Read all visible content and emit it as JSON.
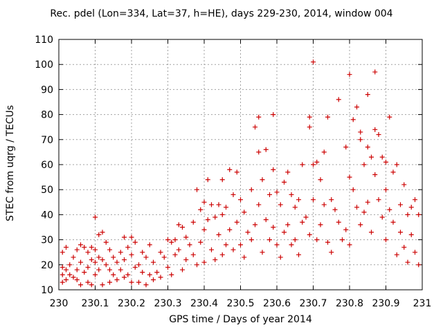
{
  "chart_data": {
    "type": "scatter",
    "title": "Rec. pdel (Lon=334, Lat=37, h=HE), days 229-230, 2014, window 004",
    "xlabel": "GPS time / Days of year 2014",
    "ylabel": "STEC from uqrg / TECUs",
    "xlim": [
      230,
      231
    ],
    "ylim": [
      10,
      110
    ],
    "xticks": [
      "230",
      "230.1",
      "230.2",
      "230.3",
      "230.4",
      "230.5",
      "230.6",
      "230.7",
      "230.8",
      "230.9",
      "231"
    ],
    "yticks": [
      "10",
      "20",
      "30",
      "40",
      "50",
      "60",
      "70",
      "80",
      "90",
      "100",
      "110"
    ],
    "grid": true,
    "marker": "+",
    "color": "#cc0000",
    "series": [
      {
        "points": [
          [
            230.01,
            25
          ],
          [
            230.01,
            19
          ],
          [
            230.01,
            16
          ],
          [
            230.01,
            13
          ],
          [
            230.02,
            27
          ],
          [
            230.02,
            18
          ],
          [
            230.02,
            14
          ],
          [
            230.03,
            20
          ],
          [
            230.03,
            16
          ],
          [
            230.04,
            23
          ],
          [
            230.04,
            15
          ],
          [
            230.05,
            26
          ],
          [
            230.05,
            18
          ],
          [
            230.05,
            14
          ],
          [
            230.06,
            28
          ],
          [
            230.06,
            21
          ],
          [
            230.06,
            12
          ],
          [
            230.07,
            27
          ],
          [
            230.07,
            17
          ],
          [
            230.08,
            25
          ],
          [
            230.08,
            19
          ],
          [
            230.08,
            13
          ],
          [
            230.09,
            27
          ],
          [
            230.09,
            22
          ],
          [
            230.09,
            12
          ],
          [
            230.1,
            39
          ],
          [
            230.1,
            26
          ],
          [
            230.1,
            21
          ],
          [
            230.1,
            16
          ],
          [
            230.11,
            32
          ],
          [
            230.11,
            23
          ],
          [
            230.11,
            18
          ],
          [
            230.12,
            33
          ],
          [
            230.12,
            22
          ],
          [
            230.12,
            12
          ],
          [
            230.13,
            29
          ],
          [
            230.13,
            20
          ],
          [
            230.14,
            26
          ],
          [
            230.14,
            18
          ],
          [
            230.14,
            13
          ],
          [
            230.15,
            23
          ],
          [
            230.15,
            16
          ],
          [
            230.16,
            21
          ],
          [
            230.16,
            14
          ],
          [
            230.17,
            25
          ],
          [
            230.17,
            18
          ],
          [
            230.18,
            31
          ],
          [
            230.18,
            22
          ],
          [
            230.18,
            15
          ],
          [
            230.19,
            27
          ],
          [
            230.19,
            16
          ],
          [
            230.2,
            31
          ],
          [
            230.2,
            24
          ],
          [
            230.2,
            13
          ],
          [
            230.21,
            29
          ],
          [
            230.21,
            19
          ],
          [
            230.22,
            20
          ],
          [
            230.22,
            13
          ],
          [
            230.23,
            25
          ],
          [
            230.23,
            17
          ],
          [
            230.24,
            23
          ],
          [
            230.24,
            12
          ],
          [
            230.25,
            28
          ],
          [
            230.25,
            16
          ],
          [
            230.26,
            21
          ],
          [
            230.26,
            14
          ],
          [
            230.27,
            17
          ],
          [
            230.28,
            25
          ],
          [
            230.28,
            15
          ],
          [
            230.29,
            23
          ],
          [
            230.3,
            30
          ],
          [
            230.3,
            19
          ],
          [
            230.31,
            29
          ],
          [
            230.31,
            16
          ],
          [
            230.32,
            30
          ],
          [
            230.32,
            24
          ],
          [
            230.33,
            36
          ],
          [
            230.33,
            26
          ],
          [
            230.34,
            35
          ],
          [
            230.34,
            18
          ],
          [
            230.35,
            31
          ],
          [
            230.35,
            22
          ],
          [
            230.36,
            28
          ],
          [
            230.37,
            37
          ],
          [
            230.37,
            24
          ],
          [
            230.38,
            50
          ],
          [
            230.38,
            20
          ],
          [
            230.39,
            42
          ],
          [
            230.39,
            29
          ],
          [
            230.4,
            45
          ],
          [
            230.4,
            34
          ],
          [
            230.4,
            21
          ],
          [
            230.41,
            54
          ],
          [
            230.41,
            38
          ],
          [
            230.42,
            44
          ],
          [
            230.42,
            26
          ],
          [
            230.43,
            39
          ],
          [
            230.43,
            22
          ],
          [
            230.44,
            44
          ],
          [
            230.44,
            32
          ],
          [
            230.45,
            54
          ],
          [
            230.45,
            40
          ],
          [
            230.45,
            24
          ],
          [
            230.46,
            43
          ],
          [
            230.46,
            28
          ],
          [
            230.47,
            58
          ],
          [
            230.47,
            34
          ],
          [
            230.48,
            48
          ],
          [
            230.48,
            26
          ],
          [
            230.49,
            57
          ],
          [
            230.49,
            37
          ],
          [
            230.5,
            46
          ],
          [
            230.5,
            28
          ],
          [
            230.51,
            41
          ],
          [
            230.51,
            23
          ],
          [
            230.52,
            33
          ],
          [
            230.53,
            50
          ],
          [
            230.53,
            30
          ],
          [
            230.54,
            75
          ],
          [
            230.54,
            36
          ],
          [
            230.55,
            79
          ],
          [
            230.55,
            65
          ],
          [
            230.55,
            44
          ],
          [
            230.56,
            54
          ],
          [
            230.56,
            25
          ],
          [
            230.57,
            66
          ],
          [
            230.57,
            38
          ],
          [
            230.58,
            48
          ],
          [
            230.58,
            30
          ],
          [
            230.59,
            80
          ],
          [
            230.59,
            58
          ],
          [
            230.59,
            35
          ],
          [
            230.6,
            49
          ],
          [
            230.6,
            28
          ],
          [
            230.61,
            44
          ],
          [
            230.61,
            23
          ],
          [
            230.62,
            53
          ],
          [
            230.62,
            33
          ],
          [
            230.63,
            57
          ],
          [
            230.63,
            36
          ],
          [
            230.64,
            48
          ],
          [
            230.64,
            28
          ],
          [
            230.65,
            43
          ],
          [
            230.65,
            30
          ],
          [
            230.66,
            46
          ],
          [
            230.66,
            24
          ],
          [
            230.67,
            60
          ],
          [
            230.67,
            37
          ],
          [
            230.68,
            39
          ],
          [
            230.69,
            79
          ],
          [
            230.69,
            75
          ],
          [
            230.69,
            32
          ],
          [
            230.7,
            101
          ],
          [
            230.7,
            60
          ],
          [
            230.7,
            46
          ],
          [
            230.71,
            61
          ],
          [
            230.71,
            30
          ],
          [
            230.72,
            54
          ],
          [
            230.72,
            36
          ],
          [
            230.73,
            65
          ],
          [
            230.73,
            44
          ],
          [
            230.74,
            79
          ],
          [
            230.74,
            29
          ],
          [
            230.75,
            46
          ],
          [
            230.75,
            25
          ],
          [
            230.76,
            42
          ],
          [
            230.77,
            86
          ],
          [
            230.77,
            37
          ],
          [
            230.78,
            30
          ],
          [
            230.79,
            67
          ],
          [
            230.79,
            34
          ],
          [
            230.8,
            96
          ],
          [
            230.8,
            55
          ],
          [
            230.8,
            28
          ],
          [
            230.81,
            78
          ],
          [
            230.81,
            50
          ],
          [
            230.82,
            83
          ],
          [
            230.82,
            43
          ],
          [
            230.83,
            73
          ],
          [
            230.83,
            70
          ],
          [
            230.83,
            36
          ],
          [
            230.84,
            60
          ],
          [
            230.84,
            41
          ],
          [
            230.85,
            88
          ],
          [
            230.85,
            67
          ],
          [
            230.85,
            45
          ],
          [
            230.86,
            63
          ],
          [
            230.86,
            33
          ],
          [
            230.87,
            97
          ],
          [
            230.87,
            74
          ],
          [
            230.87,
            56
          ],
          [
            230.88,
            72
          ],
          [
            230.88,
            46
          ],
          [
            230.89,
            63
          ],
          [
            230.89,
            39
          ],
          [
            230.9,
            61
          ],
          [
            230.9,
            50
          ],
          [
            230.9,
            30
          ],
          [
            230.91,
            79
          ],
          [
            230.91,
            42
          ],
          [
            230.92,
            57
          ],
          [
            230.92,
            37
          ],
          [
            230.93,
            60
          ],
          [
            230.93,
            24
          ],
          [
            230.94,
            44
          ],
          [
            230.94,
            33
          ],
          [
            230.95,
            52
          ],
          [
            230.95,
            27
          ],
          [
            230.96,
            40
          ],
          [
            230.96,
            21
          ],
          [
            230.97,
            43
          ],
          [
            230.97,
            32
          ],
          [
            230.98,
            46
          ],
          [
            230.98,
            25
          ],
          [
            230.99,
            40
          ],
          [
            230.99,
            20
          ]
        ]
      }
    ]
  }
}
